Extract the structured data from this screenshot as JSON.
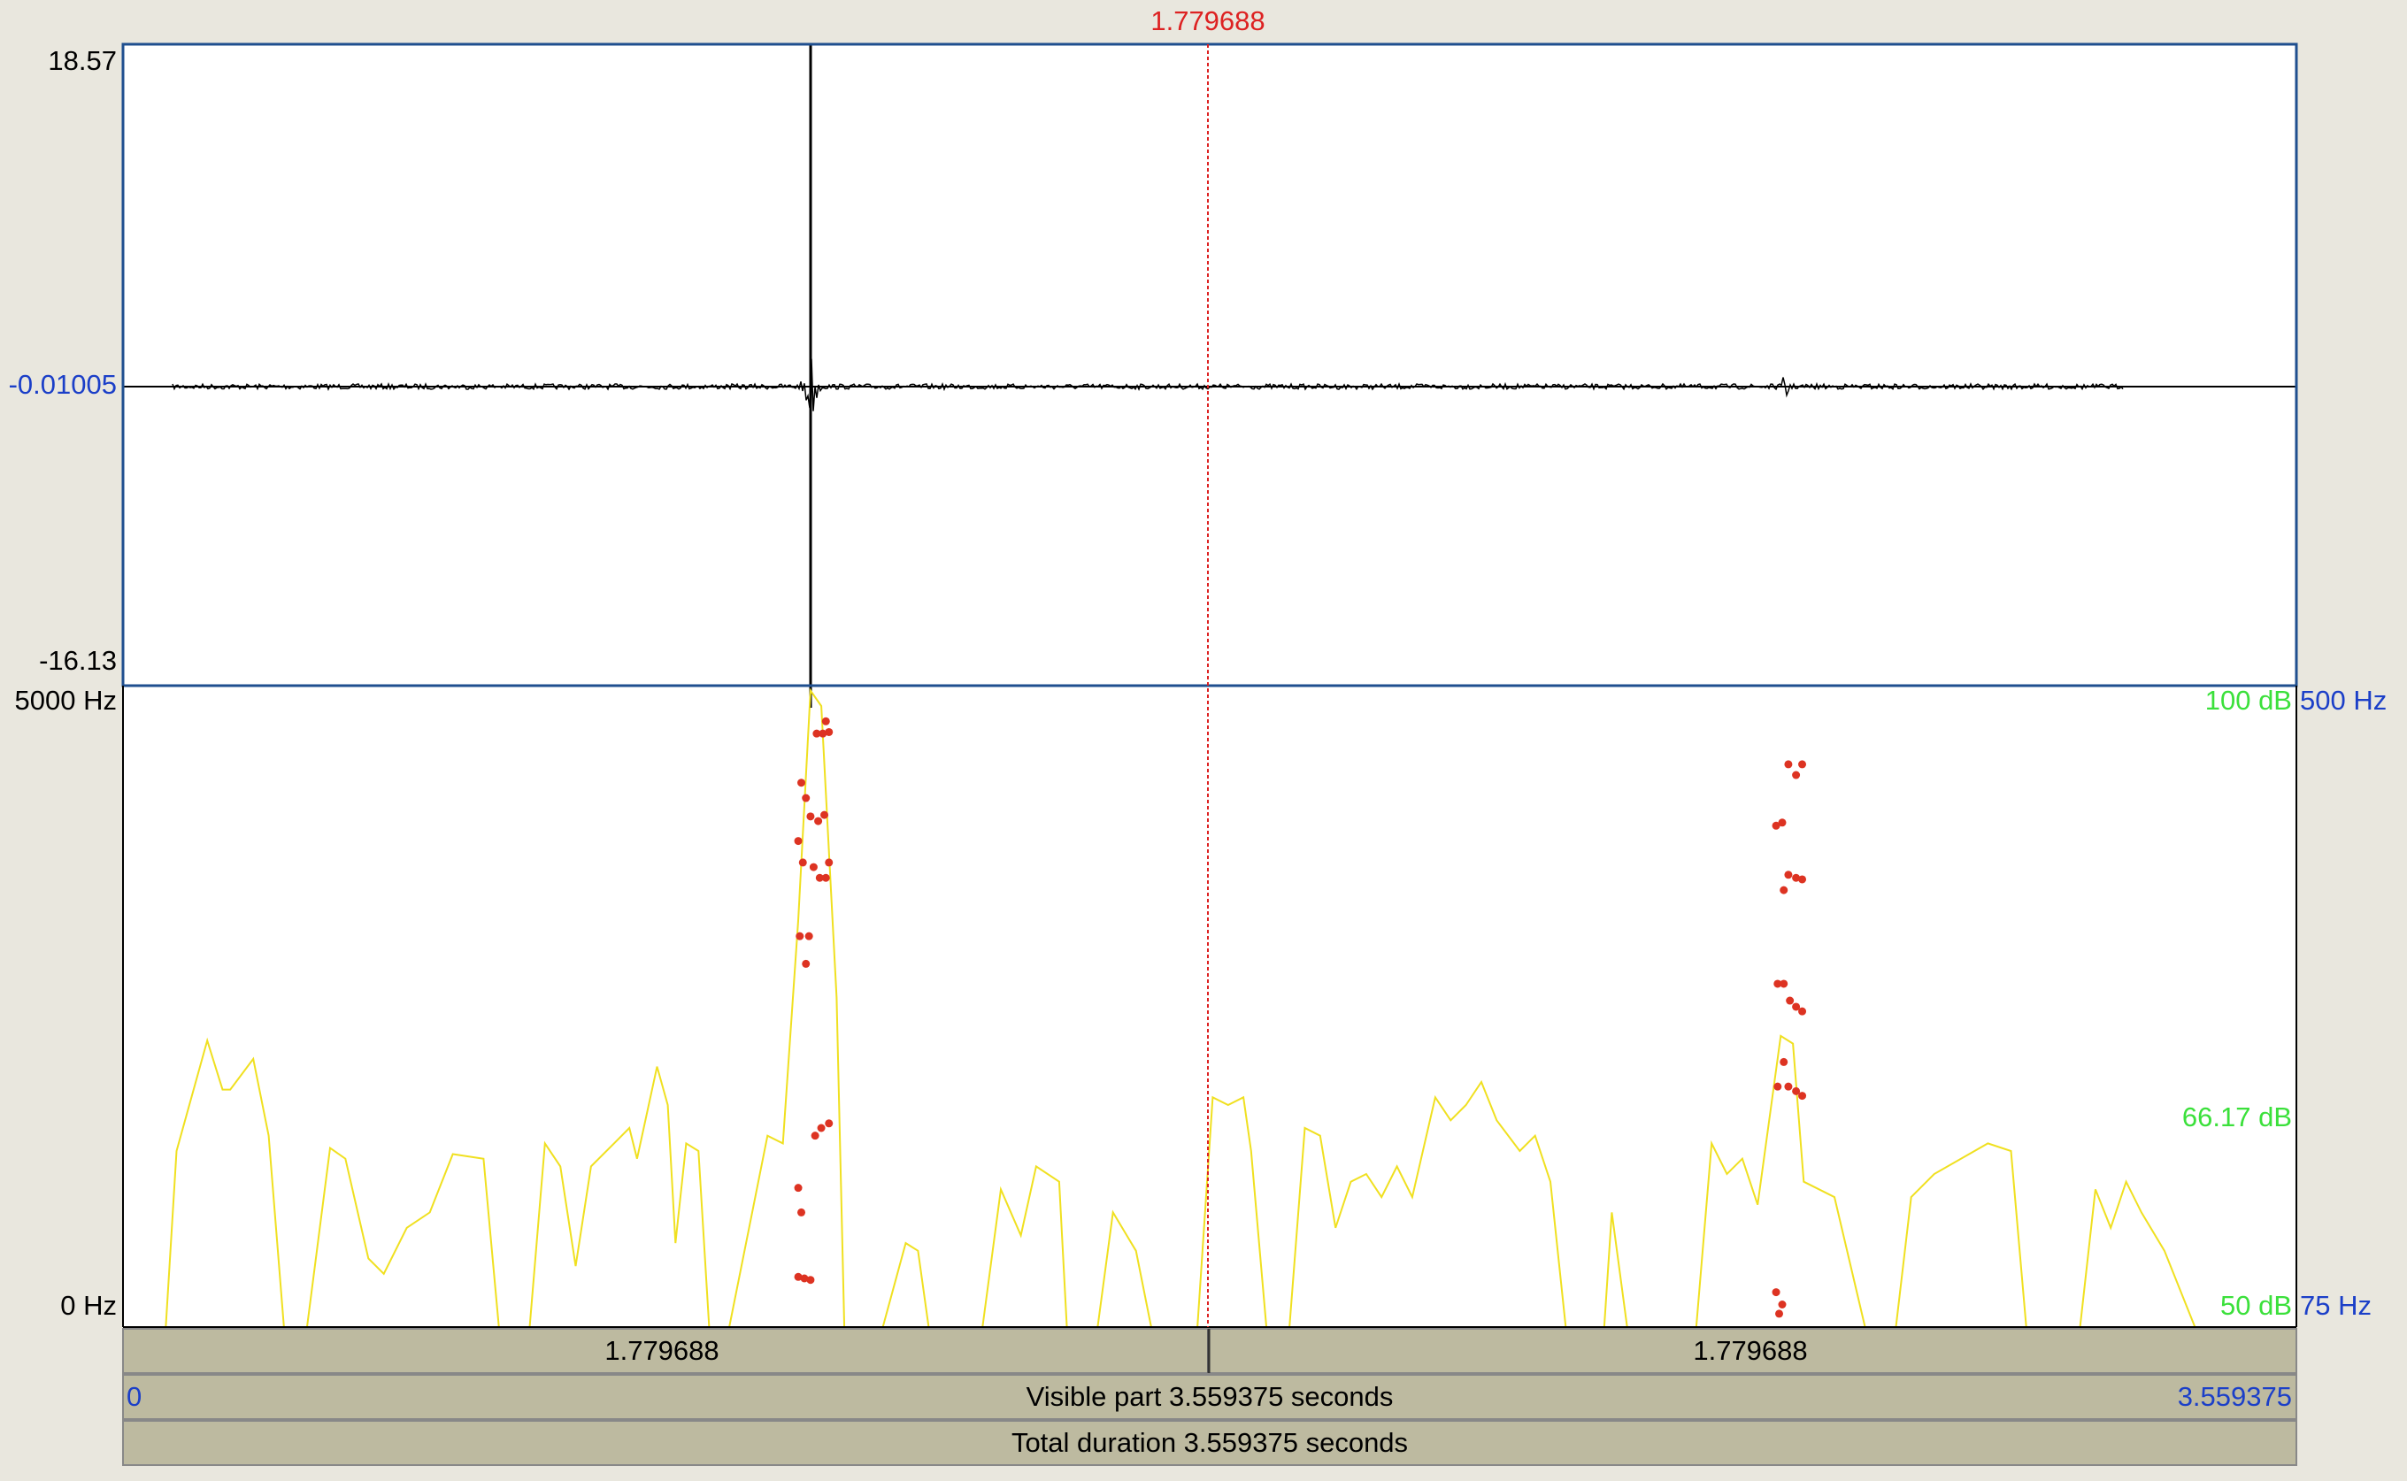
{
  "cursor_time": "1.779688",
  "waveform_axis": {
    "top": "18.57",
    "center": "-0.01005",
    "bottom": "-16.13"
  },
  "spectrogram_axis": {
    "top": "5000 Hz",
    "bottom": "0 Hz"
  },
  "intensity_axis": {
    "top": "100 dB",
    "middle": "66.17 dB",
    "bottom": "50 dB"
  },
  "pitch_axis": {
    "top": "500 Hz",
    "bottom": "75 Hz"
  },
  "selection_bar": {
    "left": "1.779688",
    "right": "1.779688"
  },
  "visible_bar": {
    "start": "0",
    "label": "Visible part 3.559375 seconds",
    "end": "3.559375"
  },
  "total_bar": {
    "label": "Total duration 3.559375 seconds"
  }
}
